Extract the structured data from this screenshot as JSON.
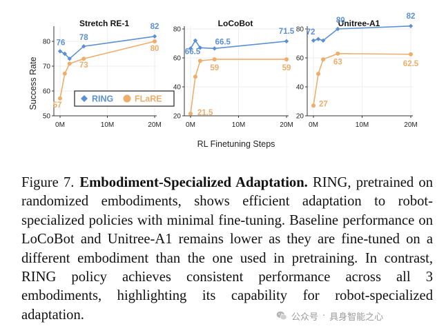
{
  "chart_data": [
    {
      "type": "line",
      "title": "Stretch RE-1",
      "ylabel": "Success Rate",
      "xlabel": "RL Finetuning Steps",
      "ylim": [
        50,
        85
      ],
      "yticks": [
        50,
        60,
        70,
        80
      ],
      "xlim": [
        0,
        20
      ],
      "xticks": [
        0,
        10,
        20
      ],
      "xtick_labels": [
        "0M",
        "10M",
        "20M"
      ],
      "legend": {
        "position": "lower-center",
        "framed": true
      },
      "series": [
        {
          "name": "RING",
          "color": "#5b8fd6",
          "marker": "diamond",
          "x": [
            0,
            1,
            2,
            5,
            20
          ],
          "y": [
            76,
            75,
            73,
            78,
            82
          ],
          "labels": [
            {
              "x": 0,
              "y": 76,
              "text": "76"
            },
            {
              "x": 5,
              "y": 78,
              "text": "78"
            },
            {
              "x": 20,
              "y": 82,
              "text": "82"
            }
          ]
        },
        {
          "name": "FLaRE",
          "color": "#efad6b",
          "marker": "circle",
          "x": [
            0,
            1,
            2,
            5,
            20
          ],
          "y": [
            57,
            67,
            71,
            73,
            80
          ],
          "labels": [
            {
              "x": 0,
              "y": 57,
              "text": "57"
            },
            {
              "x": 5,
              "y": 73,
              "text": "73"
            },
            {
              "x": 20,
              "y": 80,
              "text": "80"
            }
          ]
        }
      ]
    },
    {
      "type": "line",
      "title": "LoCoBot",
      "ylim": [
        20,
        80
      ],
      "yticks": [
        20,
        40,
        60,
        80
      ],
      "xlim": [
        0,
        20
      ],
      "xticks": [
        0,
        10,
        20
      ],
      "xtick_labels": [
        "0M",
        "10M",
        "20M"
      ],
      "series": [
        {
          "name": "RING",
          "color": "#5b8fd6",
          "marker": "diamond",
          "x": [
            0,
            1,
            2,
            5,
            20
          ],
          "y": [
            66.5,
            72,
            67,
            66.5,
            71.5
          ],
          "labels": [
            {
              "x": 0,
              "y": 66.5,
              "text": "66.5"
            },
            {
              "x": 5,
              "y": 66.5,
              "text": "66.5"
            },
            {
              "x": 20,
              "y": 71.5,
              "text": "71.5"
            }
          ]
        },
        {
          "name": "FLaRE",
          "color": "#efad6b",
          "marker": "circle",
          "x": [
            0,
            1,
            2,
            5,
            20
          ],
          "y": [
            21.5,
            47,
            58,
            59,
            59
          ],
          "labels": [
            {
              "x": 0,
              "y": 21.5,
              "text": "21.5"
            },
            {
              "x": 5,
              "y": 59,
              "text": "59"
            },
            {
              "x": 20,
              "y": 59,
              "text": "59"
            }
          ]
        }
      ]
    },
    {
      "type": "line",
      "title": "Unitree-A1",
      "ylim": [
        20,
        80
      ],
      "yticks": [
        20,
        40,
        60,
        80
      ],
      "xlim": [
        0,
        20
      ],
      "xticks": [
        0,
        10,
        20
      ],
      "xtick_labels": [
        "0M",
        "10M",
        "20M"
      ],
      "series": [
        {
          "name": "RING",
          "color": "#5b8fd6",
          "marker": "diamond",
          "x": [
            0,
            1,
            2,
            5,
            20
          ],
          "y": [
            72,
            73,
            72,
            80,
            82
          ],
          "labels": [
            {
              "x": 0,
              "y": 72,
              "text": "72"
            },
            {
              "x": 5,
              "y": 80,
              "text": "80"
            },
            {
              "x": 20,
              "y": 82,
              "text": "82"
            }
          ]
        },
        {
          "name": "FLaRE",
          "color": "#efad6b",
          "marker": "circle",
          "x": [
            0,
            1,
            2,
            5,
            20
          ],
          "y": [
            27,
            49,
            59,
            63,
            62.5
          ],
          "labels": [
            {
              "x": 0,
              "y": 27,
              "text": "27"
            },
            {
              "x": 5,
              "y": 63,
              "text": "63"
            },
            {
              "x": 20,
              "y": 62.5,
              "text": "62.5"
            }
          ]
        }
      ]
    }
  ],
  "figure": {
    "xlabel": "RL Finetuning Steps",
    "ylabel": "Success Rate"
  },
  "caption": {
    "label": "Figure 7.",
    "bold_title": "Embodiment-Specialized Adaptation.",
    "ring_r": "R",
    "ring_rest": "ING",
    "text_1": ", pretrained on randomized embodiments, shows efficient adaptation to robot-specialized policies with minimal fine-tuning. Baseline performance on LoCoBot and Unitree-A1 remains lower as they are fine-tuned on a different embodiment than the one used in pretraining. In contrast, ",
    "text_2": " policy achieves consistent performance across all 3 embodiments, highlighting its capability for robot-specialized adaptation."
  },
  "watermark": {
    "source": "公众号",
    "separator": "·",
    "name": "具身智能之心"
  },
  "colors": {
    "ring": "#5b8fd6",
    "flare": "#efad6b",
    "axis": "#333333",
    "caption": "#111111"
  }
}
